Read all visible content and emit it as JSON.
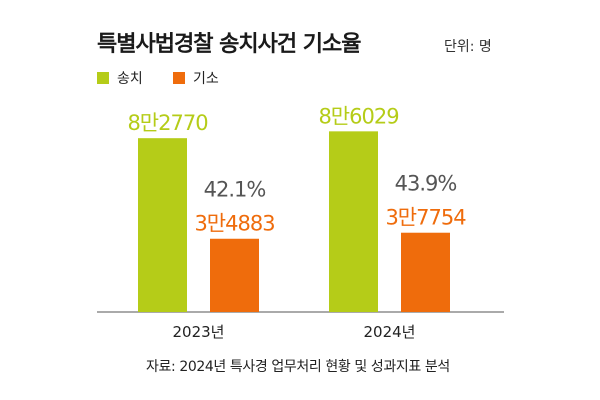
{
  "title": "특별사법경찰 송치사건 기소율",
  "unit": "단위: 명",
  "source": "자료: 2024년 특사경 업무처리 현황 및 성과지표 분석",
  "colors": {
    "send": "#b5cc18",
    "indict": "#ef6c0c",
    "rate": "#555555"
  },
  "chart_data": {
    "type": "bar",
    "title": "특별사법경찰 송치사건 기소율",
    "categories": [
      "2023년",
      "2024년"
    ],
    "series": [
      {
        "name": "송치",
        "values": [
          82770,
          86029
        ],
        "labels": [
          "8만2770",
          "8만6029"
        ]
      },
      {
        "name": "기소",
        "values": [
          34883,
          37754
        ],
        "labels": [
          "3만4883",
          "3만7754"
        ]
      }
    ],
    "rates": [
      "42.1%",
      "43.9%"
    ],
    "ylim": [
      0,
      100000
    ],
    "legend": "top-left",
    "xlabel": "",
    "ylabel": ""
  }
}
